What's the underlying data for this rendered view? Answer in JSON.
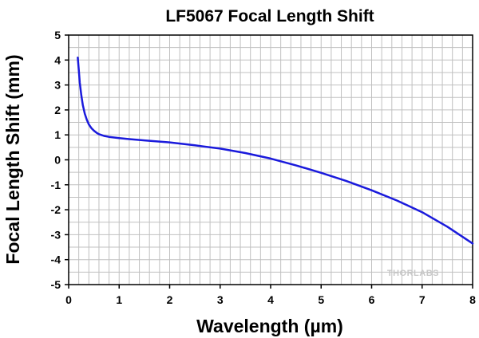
{
  "chart_data": {
    "type": "line",
    "title": "LF5067 Focal Length Shift",
    "xlabel": "Wavelength (µm)",
    "ylabel": "Focal Length Shift (mm)",
    "xlim": [
      0,
      8
    ],
    "ylim": [
      -5,
      5
    ],
    "x_ticks": [
      "0",
      "1",
      "2",
      "3",
      "4",
      "5",
      "6",
      "7",
      "8"
    ],
    "y_ticks": [
      "5",
      "4",
      "3",
      "2",
      "1",
      "0",
      "-1",
      "-2",
      "-3",
      "-4",
      "-5"
    ],
    "grid": true,
    "line_color": "#1a1adc",
    "watermark": "THORLABS",
    "series": [
      {
        "x": [
          0.18,
          0.2,
          0.22,
          0.25,
          0.28,
          0.32,
          0.36,
          0.4,
          0.45,
          0.5,
          0.55,
          0.6,
          0.7,
          0.8,
          1.0,
          1.2,
          1.5,
          2.0,
          2.5,
          3.0,
          3.5,
          4.0,
          4.5,
          5.0,
          5.5,
          6.0,
          6.5,
          7.0,
          7.5,
          8.0
        ],
        "y": [
          4.1,
          3.6,
          3.1,
          2.6,
          2.2,
          1.85,
          1.6,
          1.42,
          1.27,
          1.17,
          1.09,
          1.03,
          0.96,
          0.92,
          0.87,
          0.83,
          0.78,
          0.7,
          0.58,
          0.45,
          0.27,
          0.05,
          -0.22,
          -0.52,
          -0.85,
          -1.22,
          -1.63,
          -2.1,
          -2.68,
          -3.35
        ]
      }
    ]
  }
}
